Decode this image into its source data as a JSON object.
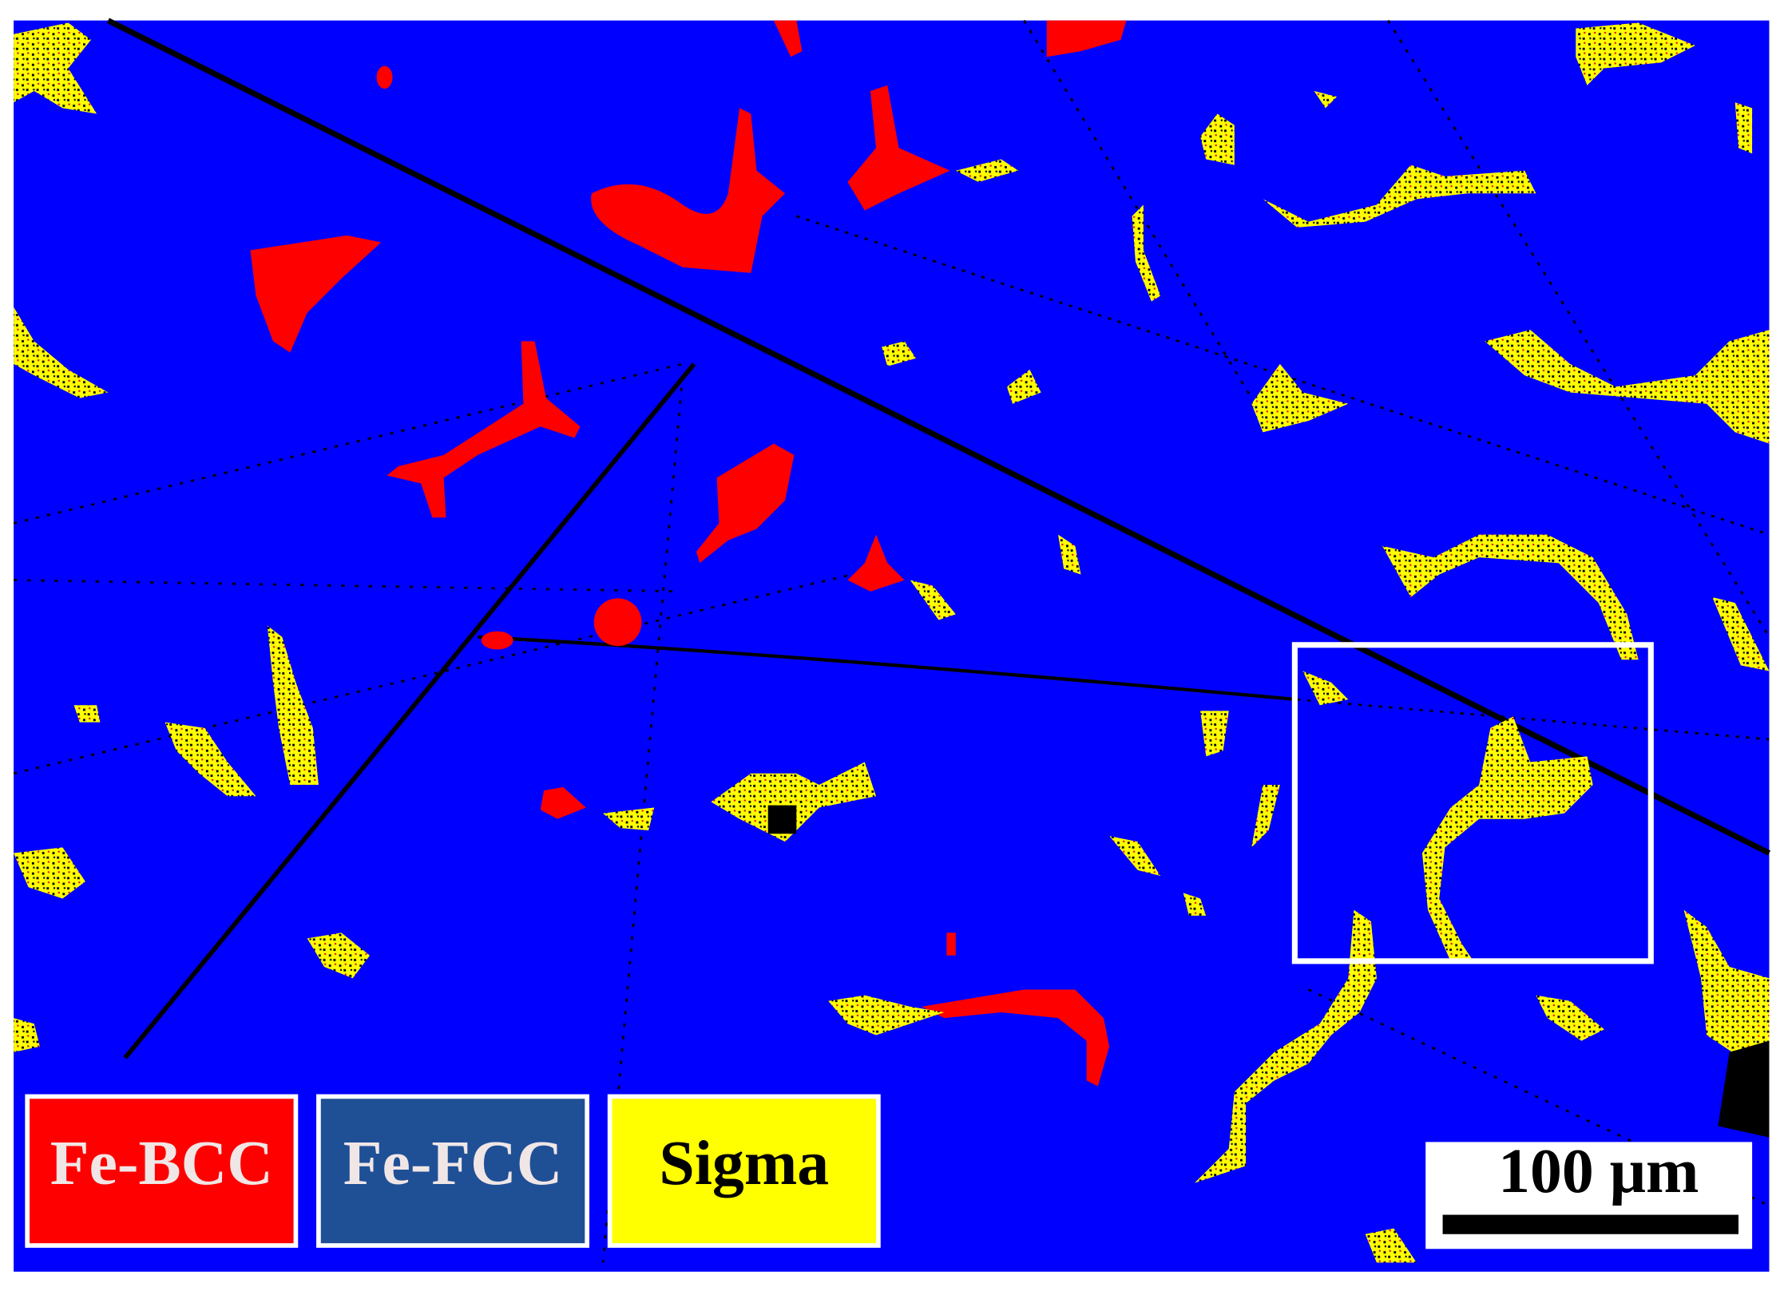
{
  "legend": [
    "Fe-BCC",
    "Fe-FCC",
    "Sigma"
  ],
  "scale_bar": "100 μm"
}
